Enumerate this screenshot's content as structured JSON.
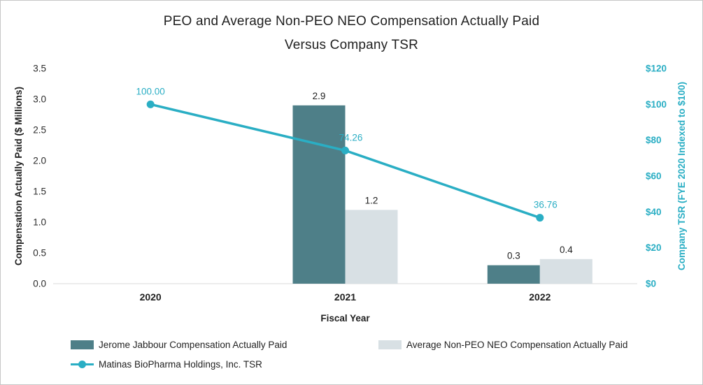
{
  "chart_data": {
    "type": "bar+line",
    "title_lines": [
      "PEO and Average Non-PEO NEO Compensation Actually Paid",
      "Versus Company TSR"
    ],
    "title": "PEO and Average Non-PEO NEO Compensation Actually Paid Versus Company TSR",
    "xlabel": "Fiscal Year",
    "ylabel_left": "Compensation Actually Paid ($ Millions)",
    "ylabel_right": "Company TSR (FYE 2020 Indexed to $100)",
    "categories": [
      "2020",
      "2021",
      "2022"
    ],
    "bar_series": [
      {
        "name": "Jerome Jabbour Compensation Actually Paid",
        "color": "#4e7f88",
        "values": [
          null,
          2.9,
          0.3
        ],
        "labels": [
          "",
          "2.9",
          "0.3"
        ]
      },
      {
        "name": "Average Non-PEO NEO Compensation Actually Paid",
        "color": "#d8e0e4",
        "values": [
          null,
          1.2,
          0.4
        ],
        "labels": [
          "",
          "1.2",
          "0.4"
        ]
      }
    ],
    "line_series": {
      "name": "Matinas BioPharma Holdings, Inc. TSR",
      "color": "#2aaec4",
      "values": [
        100.0,
        74.26,
        36.76
      ],
      "labels": [
        "100.00",
        "74.26",
        "36.76"
      ]
    },
    "left_axis": {
      "min": 0,
      "max": 3.5,
      "step": 0.5,
      "tick_labels": [
        "0.0",
        "0.5",
        "1.0",
        "1.5",
        "2.0",
        "2.5",
        "3.0",
        "3.5"
      ]
    },
    "right_axis": {
      "min": 0,
      "max": 120,
      "step": 20,
      "tick_labels": [
        "$0",
        "$20",
        "$40",
        "$60",
        "$80",
        "$100",
        "$120"
      ]
    },
    "grid": "off",
    "legend_position": "bottom"
  }
}
